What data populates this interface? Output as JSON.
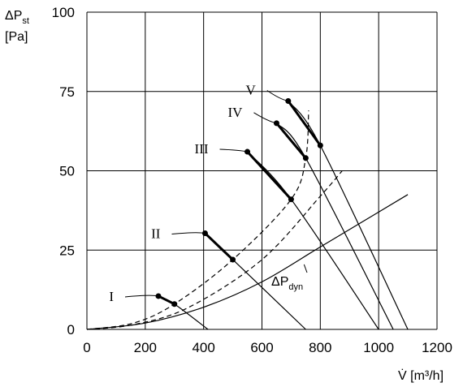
{
  "chart_data": {
    "type": "line",
    "ylabel_main": "ΔP",
    "ylabel_sub": "st",
    "ylabel_unit": "[Pa]",
    "xlabel": "V̇ [m³/h]",
    "xlim": [
      0,
      1200
    ],
    "ylim": [
      0,
      100
    ],
    "x_ticks": [
      "0",
      "200",
      "400",
      "600",
      "800",
      "1000",
      "1200"
    ],
    "y_ticks": [
      "0",
      "25",
      "50",
      "75",
      "100"
    ],
    "grid": true,
    "fan_curves": [
      {
        "name": "I",
        "points": [
          [
            245,
            10.5
          ],
          [
            300,
            8
          ],
          [
            415,
            0
          ]
        ],
        "operating_range": [
          [
            245,
            10.5
          ],
          [
            300,
            8
          ]
        ]
      },
      {
        "name": "II",
        "points": [
          [
            405,
            30.3
          ],
          [
            500,
            22
          ],
          [
            750,
            0
          ]
        ],
        "operating_range": [
          [
            405,
            30.3
          ],
          [
            500,
            22
          ]
        ]
      },
      {
        "name": "III",
        "points": [
          [
            550,
            56
          ],
          [
            700,
            41
          ],
          [
            1000,
            0
          ]
        ],
        "operating_range": [
          [
            550,
            56
          ],
          [
            700,
            41
          ]
        ]
      },
      {
        "name": "IV",
        "points": [
          [
            650,
            65
          ],
          [
            750,
            54
          ],
          [
            1050,
            0
          ]
        ],
        "operating_range": [
          [
            650,
            65
          ],
          [
            750,
            54
          ]
        ]
      },
      {
        "name": "V",
        "points": [
          [
            690,
            72
          ],
          [
            800,
            58
          ],
          [
            1100,
            0
          ]
        ],
        "operating_range": [
          [
            690,
            72
          ],
          [
            800,
            58
          ]
        ]
      }
    ],
    "system_curves": [
      {
        "style": "dashed",
        "points": [
          [
            0,
            0
          ],
          [
            160,
            2
          ],
          [
            300,
            8
          ],
          [
            500,
            22
          ],
          [
            700,
            41
          ],
          [
            750,
            54
          ],
          [
            760,
            69
          ]
        ]
      },
      {
        "style": "dashed",
        "points": [
          [
            0,
            0
          ],
          [
            160,
            1.5
          ],
          [
            350,
            7
          ],
          [
            600,
            22
          ],
          [
            800,
            42
          ],
          [
            875,
            50
          ]
        ]
      }
    ],
    "dynamic_pressure": {
      "label_main": "ΔP",
      "label_sub": "dyn",
      "points": [
        [
          0,
          0
        ],
        [
          200,
          2
        ],
        [
          400,
          7
        ],
        [
          600,
          15
        ],
        [
          800,
          26
        ],
        [
          1000,
          37
        ],
        [
          1100,
          42.5
        ]
      ]
    }
  }
}
